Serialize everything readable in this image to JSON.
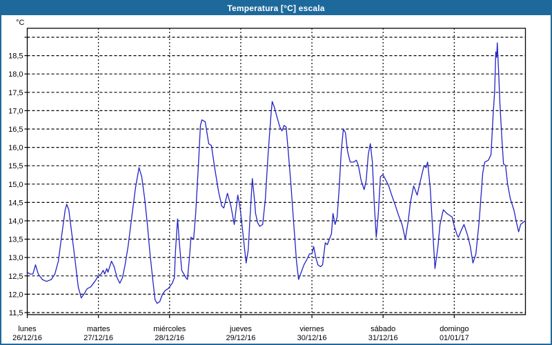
{
  "window": {
    "title": "Temperatura [°C] escala"
  },
  "colors": {
    "frame": "#1e699c",
    "titlebar_bg": "#1e699c",
    "title_text": "#ffffff",
    "plot_background": "#ffffff",
    "axis": "#000000",
    "grid": "#000000",
    "line": "#2121c6"
  },
  "chart_data": {
    "type": "line",
    "title": "Temperatura [°C] escala",
    "unit_label": "°C",
    "grid": true,
    "legend": "none",
    "y_axis": {
      "min": 11.5,
      "max": 19.0,
      "step": 0.5,
      "ticks": [
        {
          "value": 11.5,
          "label": "11,5"
        },
        {
          "value": 12.0,
          "label": "12,0"
        },
        {
          "value": 12.5,
          "label": "12,5"
        },
        {
          "value": 13.0,
          "label": "13,0"
        },
        {
          "value": 13.5,
          "label": "13,5"
        },
        {
          "value": 14.0,
          "label": "14,0"
        },
        {
          "value": 14.5,
          "label": "14,5"
        },
        {
          "value": 15.0,
          "label": "15,0"
        },
        {
          "value": 15.5,
          "label": "15,5"
        },
        {
          "value": 16.0,
          "label": "16,0"
        },
        {
          "value": 16.5,
          "label": "16,5"
        },
        {
          "value": 17.0,
          "label": "17,0"
        },
        {
          "value": 17.5,
          "label": "17,5"
        },
        {
          "value": 18.0,
          "label": "18,0"
        },
        {
          "value": 18.5,
          "label": "18,5"
        },
        {
          "value": 19.0,
          "label": ""
        }
      ]
    },
    "x_axis": {
      "hours_span": 168,
      "hours_per_day": 24,
      "days": [
        {
          "name": "lunes",
          "date": "26/12/16"
        },
        {
          "name": "martes",
          "date": "27/12/16"
        },
        {
          "name": "miércoles",
          "date": "28/12/16"
        },
        {
          "name": "jueves",
          "date": "29/12/16"
        },
        {
          "name": "viernes",
          "date": "30/12/16"
        },
        {
          "name": "sábado",
          "date": "31/12/16"
        },
        {
          "name": "domingo",
          "date": "01/01/17"
        }
      ]
    },
    "series": [
      {
        "name": "Temperatura",
        "color": "#2121c6",
        "points": [
          [
            0,
            12.6
          ],
          [
            0.9,
            12.55
          ],
          [
            1.9,
            12.55
          ],
          [
            2.8,
            12.8
          ],
          [
            3.7,
            12.55
          ],
          [
            5.1,
            12.4
          ],
          [
            6.5,
            12.35
          ],
          [
            8.1,
            12.4
          ],
          [
            9.3,
            12.55
          ],
          [
            10.5,
            12.9
          ],
          [
            11.6,
            13.6
          ],
          [
            12.8,
            14.3
          ],
          [
            13.3,
            14.45
          ],
          [
            14,
            14.3
          ],
          [
            15.1,
            13.6
          ],
          [
            16.3,
            12.8
          ],
          [
            17.2,
            12.2
          ],
          [
            18.2,
            11.9
          ],
          [
            19.1,
            12.0
          ],
          [
            20.2,
            12.15
          ],
          [
            21.4,
            12.2
          ],
          [
            22.8,
            12.35
          ],
          [
            24,
            12.5
          ],
          [
            24.9,
            12.55
          ],
          [
            25.6,
            12.65
          ],
          [
            26.1,
            12.55
          ],
          [
            26.8,
            12.7
          ],
          [
            27.2,
            12.6
          ],
          [
            28.4,
            12.9
          ],
          [
            29.3,
            12.75
          ],
          [
            30.3,
            12.45
          ],
          [
            31.2,
            12.3
          ],
          [
            32.1,
            12.45
          ],
          [
            33,
            12.8
          ],
          [
            34,
            13.3
          ],
          [
            35.4,
            14.2
          ],
          [
            36.5,
            14.9
          ],
          [
            37.7,
            15.45
          ],
          [
            38.6,
            15.2
          ],
          [
            39.6,
            14.6
          ],
          [
            40.5,
            13.9
          ],
          [
            41.4,
            13.1
          ],
          [
            42.4,
            12.35
          ],
          [
            43.1,
            11.85
          ],
          [
            43.8,
            11.75
          ],
          [
            44.7,
            11.8
          ],
          [
            45.6,
            12.0
          ],
          [
            46.5,
            12.1
          ],
          [
            47.5,
            12.15
          ],
          [
            48,
            12.2
          ],
          [
            48.9,
            12.3
          ],
          [
            49.6,
            12.45
          ],
          [
            50,
            13.2
          ],
          [
            50.7,
            14.05
          ],
          [
            51.4,
            13.3
          ],
          [
            52.1,
            12.65
          ],
          [
            52.8,
            12.55
          ],
          [
            53.5,
            12.45
          ],
          [
            54,
            12.4
          ],
          [
            54.7,
            13.0
          ],
          [
            55.2,
            13.55
          ],
          [
            56.1,
            13.5
          ],
          [
            56.8,
            14.2
          ],
          [
            57.7,
            15.5
          ],
          [
            58.4,
            16.6
          ],
          [
            58.9,
            16.75
          ],
          [
            60,
            16.7
          ],
          [
            61.2,
            16.1
          ],
          [
            62.1,
            16.05
          ],
          [
            63.3,
            15.4
          ],
          [
            64.5,
            14.8
          ],
          [
            65.6,
            14.4
          ],
          [
            66.3,
            14.35
          ],
          [
            67.5,
            14.75
          ],
          [
            68.7,
            14.4
          ],
          [
            69.8,
            13.9
          ],
          [
            71,
            14.7
          ],
          [
            71.7,
            14.4
          ],
          [
            72,
            14.2
          ],
          [
            72.8,
            13.6
          ],
          [
            73.8,
            12.85
          ],
          [
            74.5,
            13.2
          ],
          [
            75.2,
            14.2
          ],
          [
            75.9,
            15.15
          ],
          [
            76.6,
            14.6
          ],
          [
            77,
            14.2
          ],
          [
            77.7,
            13.95
          ],
          [
            78.4,
            13.85
          ],
          [
            79.4,
            13.9
          ],
          [
            80.3,
            14.6
          ],
          [
            81.2,
            15.8
          ],
          [
            82.2,
            16.9
          ],
          [
            82.6,
            17.25
          ],
          [
            83.3,
            17.1
          ],
          [
            84.3,
            16.8
          ],
          [
            85.2,
            16.55
          ],
          [
            85.9,
            16.45
          ],
          [
            86.6,
            16.6
          ],
          [
            87.3,
            16.55
          ],
          [
            88,
            15.9
          ],
          [
            88.9,
            15.0
          ],
          [
            89.8,
            14.0
          ],
          [
            90.8,
            12.9
          ],
          [
            91.5,
            12.4
          ],
          [
            92.4,
            12.6
          ],
          [
            93.3,
            12.8
          ],
          [
            94.3,
            12.95
          ],
          [
            95.2,
            13.1
          ],
          [
            96,
            13.1
          ],
          [
            96.6,
            13.3
          ],
          [
            97.3,
            13.0
          ],
          [
            98,
            12.8
          ],
          [
            98.9,
            12.75
          ],
          [
            99.6,
            12.8
          ],
          [
            100.5,
            13.4
          ],
          [
            101.2,
            13.35
          ],
          [
            101.9,
            13.5
          ],
          [
            102.6,
            13.65
          ],
          [
            103.1,
            14.2
          ],
          [
            103.8,
            13.9
          ],
          [
            104.5,
            14.1
          ],
          [
            105.2,
            14.9
          ],
          [
            105.9,
            15.9
          ],
          [
            106.6,
            16.5
          ],
          [
            107.3,
            16.4
          ],
          [
            108,
            15.9
          ],
          [
            108.9,
            15.6
          ],
          [
            110.1,
            15.6
          ],
          [
            111,
            15.65
          ],
          [
            111.7,
            15.5
          ],
          [
            112.6,
            15.1
          ],
          [
            113.6,
            14.85
          ],
          [
            114.3,
            15.1
          ],
          [
            115,
            15.8
          ],
          [
            115.7,
            16.1
          ],
          [
            116.4,
            15.6
          ],
          [
            117,
            14.5
          ],
          [
            117.7,
            13.55
          ],
          [
            118.4,
            14.2
          ],
          [
            119.1,
            15.2
          ],
          [
            119.8,
            15.25
          ],
          [
            120,
            15.25
          ],
          [
            121,
            15.1
          ],
          [
            121.9,
            14.95
          ],
          [
            122.9,
            14.7
          ],
          [
            124,
            14.45
          ],
          [
            125.2,
            14.15
          ],
          [
            126.4,
            13.9
          ],
          [
            127.5,
            13.5
          ],
          [
            128.5,
            14.0
          ],
          [
            129.2,
            14.5
          ],
          [
            130.3,
            14.95
          ],
          [
            131.5,
            14.7
          ],
          [
            132.6,
            15.1
          ],
          [
            133.8,
            15.5
          ],
          [
            134.5,
            15.45
          ],
          [
            135,
            15.6
          ],
          [
            135.9,
            14.9
          ],
          [
            136.8,
            13.65
          ],
          [
            137.5,
            12.7
          ],
          [
            138.5,
            13.3
          ],
          [
            139.2,
            13.9
          ],
          [
            140.3,
            14.3
          ],
          [
            141.5,
            14.2
          ],
          [
            142.4,
            14.15
          ],
          [
            143.3,
            14.1
          ],
          [
            144,
            13.85
          ],
          [
            145,
            13.6
          ],
          [
            145.4,
            13.55
          ],
          [
            146.4,
            13.75
          ],
          [
            147.3,
            13.9
          ],
          [
            148.5,
            13.6
          ],
          [
            149.4,
            13.3
          ],
          [
            150.3,
            12.85
          ],
          [
            151.3,
            13.1
          ],
          [
            152.4,
            14.0
          ],
          [
            153.6,
            15.3
          ],
          [
            154.3,
            15.6
          ],
          [
            155.5,
            15.65
          ],
          [
            156.4,
            15.8
          ],
          [
            157.1,
            16.9
          ],
          [
            157.6,
            17.5
          ],
          [
            158,
            18.6
          ],
          [
            158.3,
            18.45
          ],
          [
            158.5,
            18.85
          ],
          [
            159,
            18.0
          ],
          [
            159.4,
            17.2
          ],
          [
            160.1,
            16.2
          ],
          [
            160.6,
            15.55
          ],
          [
            161.3,
            15.5
          ],
          [
            162,
            15.0
          ],
          [
            162.9,
            14.6
          ],
          [
            164.1,
            14.3
          ],
          [
            165,
            13.95
          ],
          [
            165.7,
            13.7
          ],
          [
            166.4,
            13.9
          ],
          [
            167.1,
            13.95
          ],
          [
            168,
            14.0
          ]
        ]
      }
    ]
  }
}
